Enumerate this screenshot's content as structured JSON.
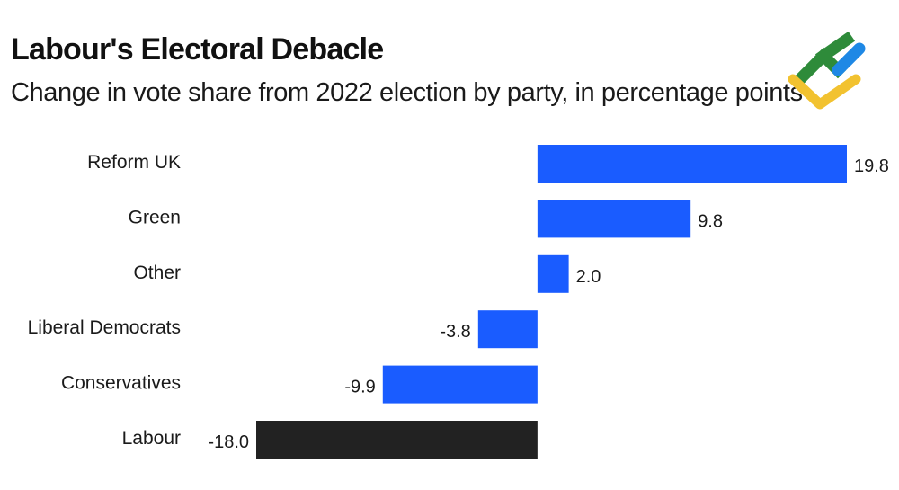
{
  "chart_data": {
    "type": "bar",
    "orientation": "horizontal",
    "title": "Labour's Electoral Debacle",
    "subtitle": "Change in vote share from 2022 election by party, in percentage points",
    "categories": [
      "Reform UK",
      "Green",
      "Other",
      "Liberal Democrats",
      "Conservatives",
      "Labour"
    ],
    "values": [
      19.8,
      9.8,
      2.0,
      -3.8,
      -9.9,
      -18.0
    ],
    "value_labels": [
      "19.8",
      "9.8",
      "2.0",
      "-3.8",
      "-9.9",
      "-18.0"
    ],
    "colors": [
      "#1a5cff",
      "#1a5cff",
      "#1a5cff",
      "#1a5cff",
      "#1a5cff",
      "#222222"
    ],
    "xlim": [
      -18.0,
      19.8
    ],
    "grid": false,
    "legend": "none"
  },
  "logo": {
    "name": "watermark-logo",
    "colors": [
      "#2e8b3a",
      "#1e88e5",
      "#f2c230"
    ]
  }
}
